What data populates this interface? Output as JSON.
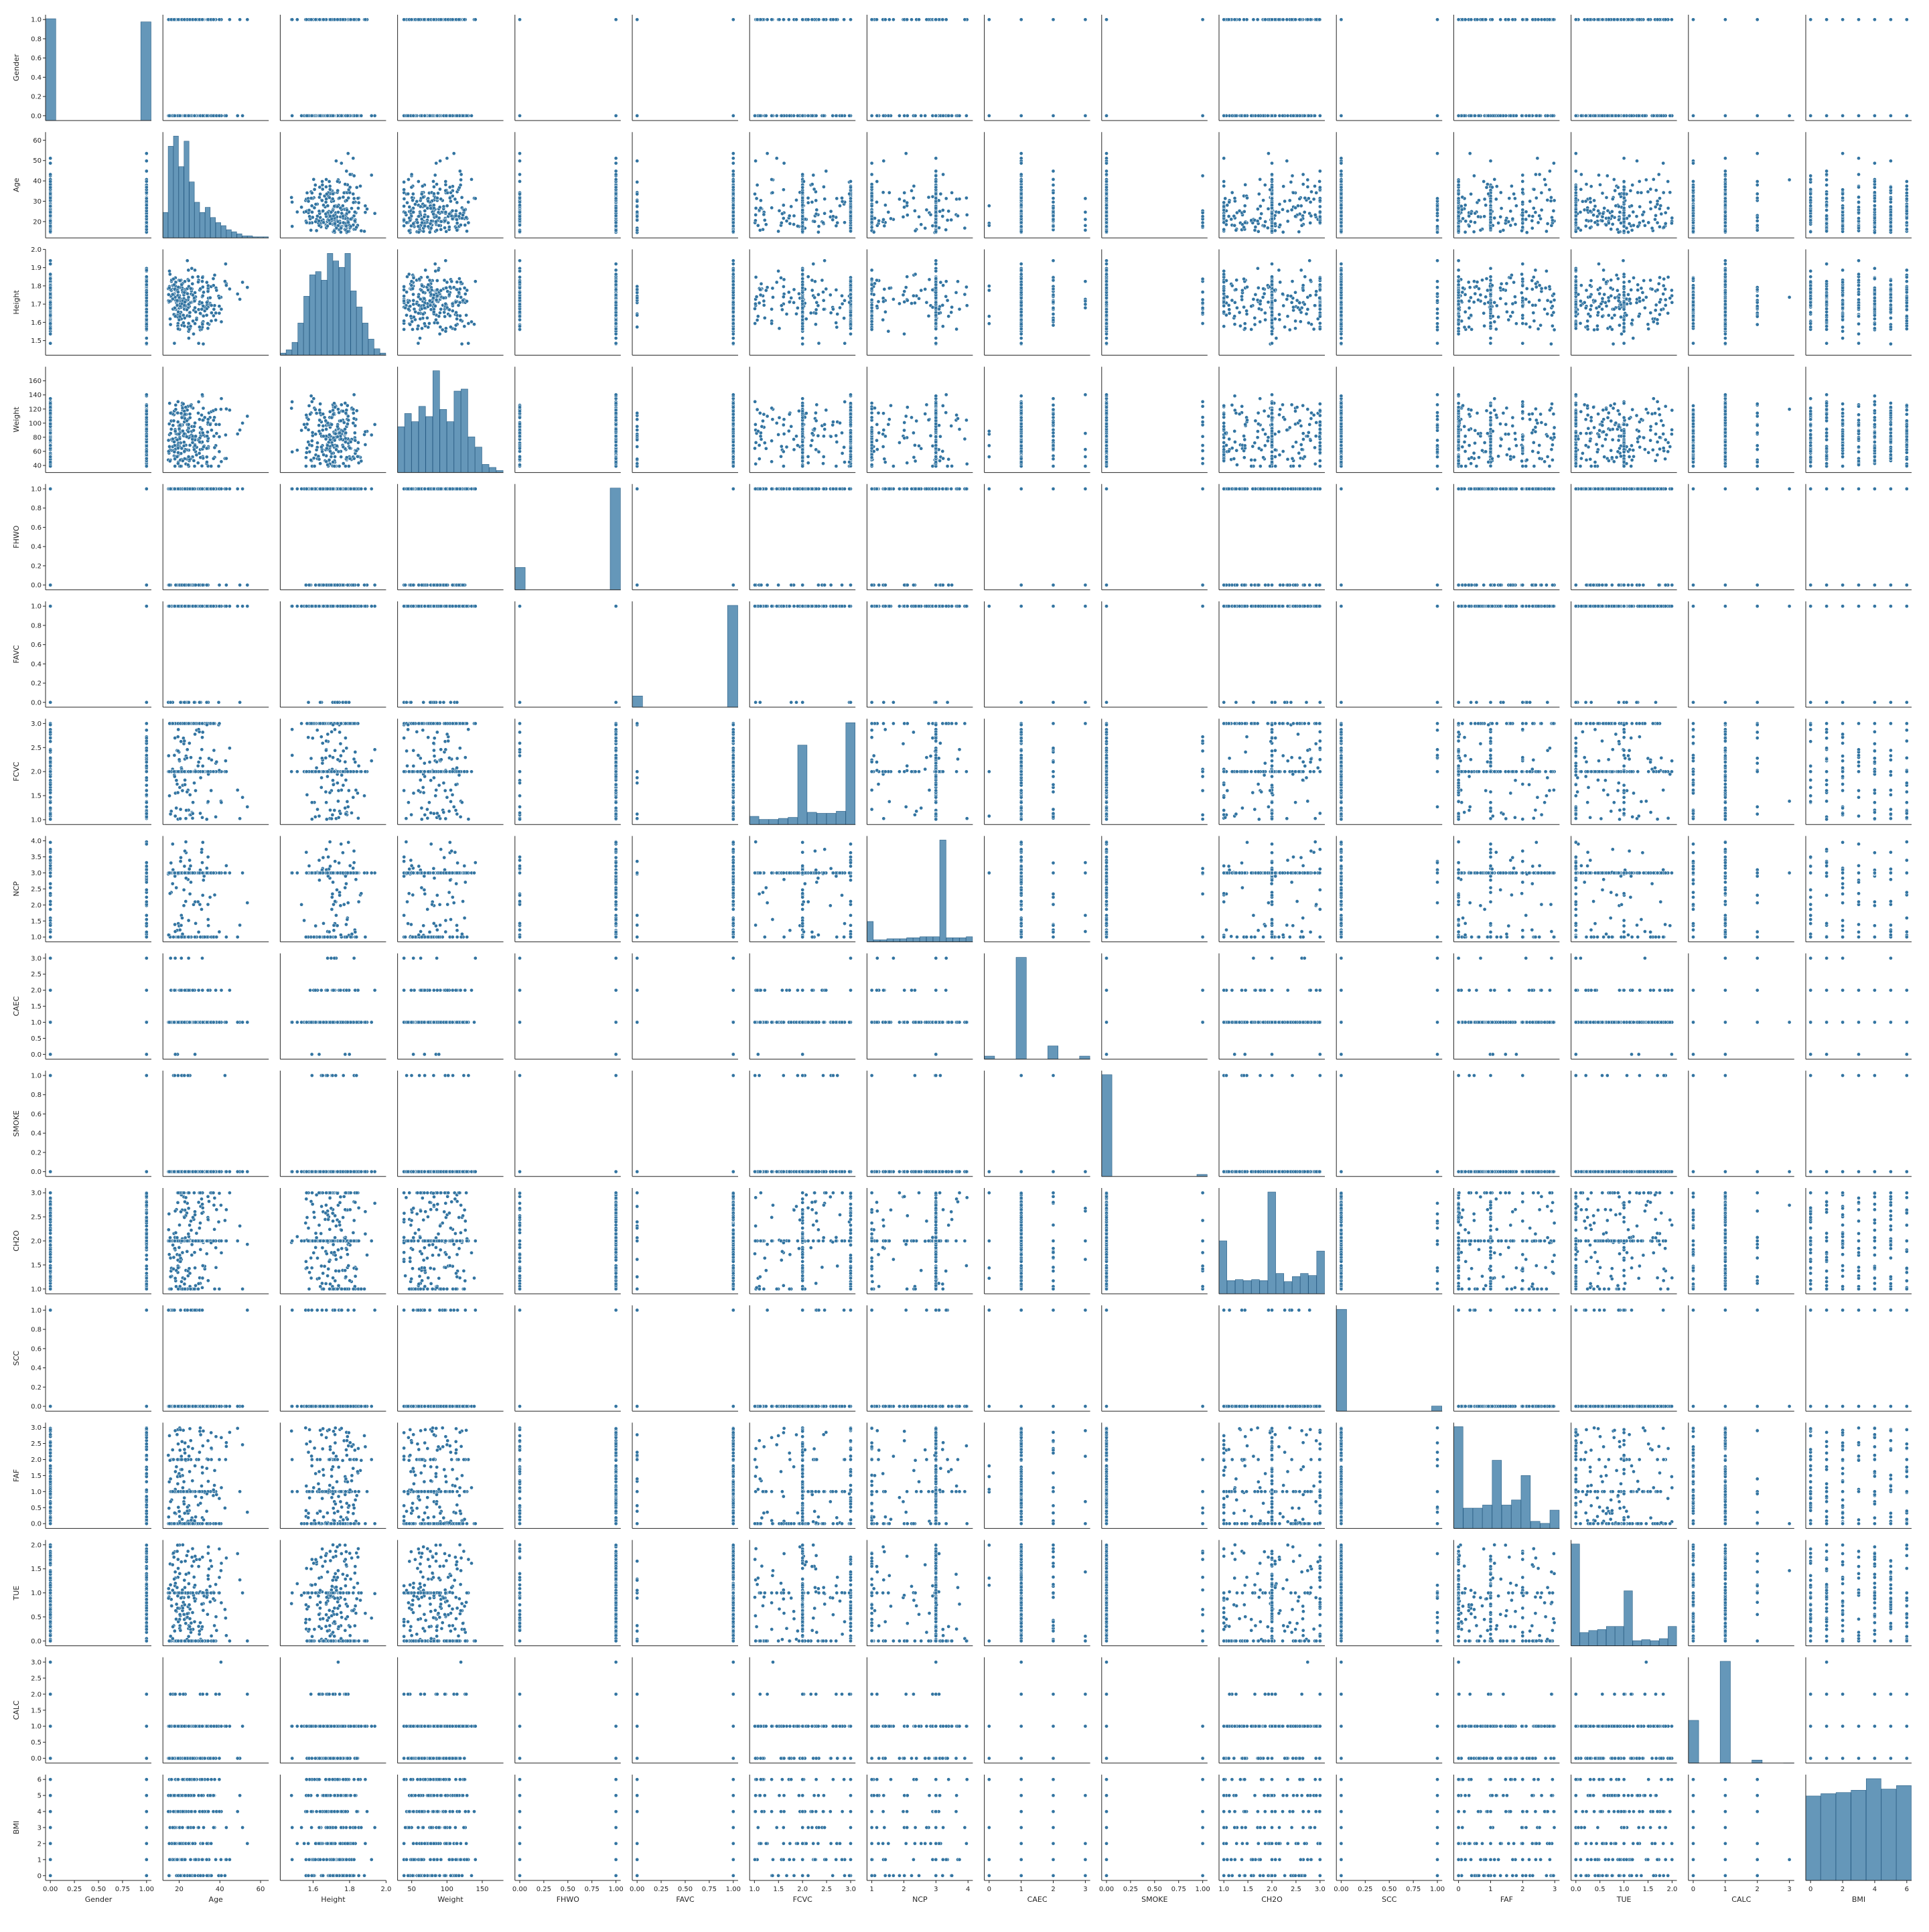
{
  "chart_data": {
    "type": "scatter",
    "subtype": "pairplot",
    "marker_color": "#3274A1",
    "marker_edge_color": "#ffffff",
    "diagonal": "histogram",
    "variables": [
      {
        "name": "Gender",
        "lim": [
          -0.05,
          1.05
        ],
        "ticks": [
          0.0,
          0.25,
          0.5,
          0.75,
          1.0
        ],
        "tick_labels": [
          "0.00",
          "0.25",
          "0.50",
          "0.75",
          "1.00"
        ],
        "ytick_labels": [
          "0.0",
          "0.2",
          "0.4",
          "0.6",
          "0.8",
          "1.0"
        ],
        "yticks": [
          0.0,
          0.2,
          0.4,
          0.6,
          0.8,
          1.0
        ],
        "kind": "binary",
        "hist": [
          0.98,
          0,
          0,
          0,
          0,
          0,
          0,
          0,
          0,
          0.95
        ]
      },
      {
        "name": "Age",
        "lim": [
          12,
          64
        ],
        "ticks": [
          20,
          40,
          60
        ],
        "tick_labels": [
          "20",
          "40",
          "60"
        ],
        "yticks": [
          20,
          30,
          40,
          50,
          60
        ],
        "ytick_labels": [
          "20",
          "30",
          "40",
          "50",
          "60"
        ],
        "kind": "skewed",
        "hist": [
          0.25,
          0.9,
          1.0,
          0.7,
          0.95,
          0.55,
          0.35,
          0.25,
          0.3,
          0.2,
          0.15,
          0.12,
          0.08,
          0.06,
          0.04,
          0.02,
          0.02,
          0.01,
          0.01,
          0.01
        ]
      },
      {
        "name": "Height",
        "lim": [
          1.42,
          2.0
        ],
        "ticks": [
          1.6,
          1.8,
          2.0
        ],
        "tick_labels": [
          "1.6",
          "1.8",
          "2.0"
        ],
        "yticks": [
          1.5,
          1.6,
          1.7,
          1.8,
          1.9,
          2.0
        ],
        "ytick_labels": [
          "1.5",
          "1.6",
          "1.7",
          "1.8",
          "1.9",
          "2.0"
        ],
        "kind": "normal",
        "hist": [
          0.02,
          0.05,
          0.12,
          0.3,
          0.55,
          0.75,
          0.78,
          0.7,
          0.95,
          0.88,
          0.82,
          0.95,
          0.6,
          0.45,
          0.3,
          0.15,
          0.06,
          0.02
        ]
      },
      {
        "name": "Weight",
        "lim": [
          30,
          180
        ],
        "ticks": [
          50,
          100,
          150
        ],
        "tick_labels": [
          "50",
          "100",
          "150"
        ],
        "yticks": [
          40,
          60,
          80,
          100,
          120,
          140,
          160
        ],
        "ytick_labels": [
          "40",
          "60",
          "80",
          "100",
          "120",
          "140",
          "160"
        ],
        "kind": "multimodal",
        "hist": [
          0.45,
          0.58,
          0.5,
          0.65,
          0.55,
          1.0,
          0.62,
          0.5,
          0.8,
          0.82,
          0.35,
          0.25,
          0.08,
          0.05,
          0.02
        ]
      },
      {
        "name": "FHWO",
        "lim": [
          -0.05,
          1.05
        ],
        "ticks": [
          0.0,
          0.25,
          0.5,
          0.75,
          1.0
        ],
        "tick_labels": [
          "0.00",
          "0.25",
          "0.50",
          "0.75",
          "1.00"
        ],
        "yticks": [
          0.0,
          0.2,
          0.4,
          0.6,
          0.8,
          1.0
        ],
        "ytick_labels": [
          "0.0",
          "0.2",
          "0.4",
          "0.6",
          "0.8",
          "1.0"
        ],
        "kind": "binary",
        "hist": [
          0.22,
          0,
          0,
          0,
          0,
          0,
          0,
          0,
          0,
          1.0
        ]
      },
      {
        "name": "FAVC",
        "lim": [
          -0.05,
          1.05
        ],
        "ticks": [
          0.0,
          0.25,
          0.5,
          0.75,
          1.0
        ],
        "tick_labels": [
          "0.00",
          "0.25",
          "0.50",
          "0.75",
          "1.00"
        ],
        "yticks": [
          0.0,
          0.2,
          0.4,
          0.6,
          0.8,
          1.0
        ],
        "ytick_labels": [
          "0.0",
          "0.2",
          "0.4",
          "0.6",
          "0.8",
          "1.0"
        ],
        "kind": "binary",
        "hist": [
          0.11,
          0,
          0,
          0,
          0,
          0,
          0,
          0,
          0,
          1.0
        ]
      },
      {
        "name": "FCVC",
        "lim": [
          0.9,
          3.1
        ],
        "ticks": [
          1.0,
          1.5,
          2.0,
          2.5,
          3.0
        ],
        "tick_labels": [
          "1.0",
          "1.5",
          "2.0",
          "2.5",
          "3.0"
        ],
        "yticks": [
          1.0,
          1.5,
          2.0,
          2.5,
          3.0
        ],
        "ytick_labels": [
          "1.0",
          "1.5",
          "2.0",
          "2.5",
          "3.0"
        ],
        "kind": "semi-discrete",
        "hist": [
          0.08,
          0.05,
          0.05,
          0.06,
          0.07,
          0.78,
          0.12,
          0.11,
          0.11,
          0.13,
          1.0
        ]
      },
      {
        "name": "NCP",
        "lim": [
          0.85,
          4.15
        ],
        "ticks": [
          1,
          2,
          3,
          4
        ],
        "tick_labels": [
          "1",
          "2",
          "3",
          "4"
        ],
        "yticks": [
          1.0,
          1.5,
          2.0,
          2.5,
          3.0,
          3.5,
          4.0
        ],
        "ytick_labels": [
          "1.0",
          "1.5",
          "2.0",
          "2.5",
          "3.0",
          "3.5",
          "4.0"
        ],
        "kind": "semi-discrete",
        "hist": [
          0.2,
          0.02,
          0.02,
          0.03,
          0.03,
          0.03,
          0.04,
          0.04,
          0.05,
          0.05,
          0.05,
          1.0,
          0.04,
          0.04,
          0.04,
          0.05
        ]
      },
      {
        "name": "CAEC",
        "lim": [
          -0.15,
          3.15
        ],
        "ticks": [
          0,
          1,
          2,
          3
        ],
        "tick_labels": [
          "0",
          "1",
          "2",
          "3"
        ],
        "yticks": [
          0.0,
          0.5,
          1.0,
          1.5,
          2.0,
          2.5,
          3.0
        ],
        "ytick_labels": [
          "0.0",
          "0.5",
          "1.0",
          "1.5",
          "2.0",
          "2.5",
          "3.0"
        ],
        "kind": "categorical",
        "hist": [
          0.03,
          0,
          0,
          1.0,
          0,
          0,
          0.13,
          0,
          0,
          0.03
        ]
      },
      {
        "name": "SMOKE",
        "lim": [
          -0.05,
          1.05
        ],
        "ticks": [
          0.0,
          0.25,
          0.5,
          0.75,
          1.0
        ],
        "tick_labels": [
          "0.00",
          "0.25",
          "0.50",
          "0.75",
          "1.00"
        ],
        "yticks": [
          0.0,
          0.2,
          0.4,
          0.6,
          0.8,
          1.0
        ],
        "ytick_labels": [
          "0.0",
          "0.2",
          "0.4",
          "0.6",
          "0.8",
          "1.0"
        ],
        "kind": "binary",
        "hist": [
          1.0,
          0,
          0,
          0,
          0,
          0,
          0,
          0,
          0,
          0.02
        ]
      },
      {
        "name": "CH2O",
        "lim": [
          0.9,
          3.1
        ],
        "ticks": [
          1.0,
          1.5,
          2.0,
          2.5,
          3.0
        ],
        "tick_labels": [
          "1.0",
          "1.5",
          "2.0",
          "2.5",
          "3.0"
        ],
        "yticks": [
          1.0,
          1.5,
          2.0,
          2.5,
          3.0
        ],
        "ytick_labels": [
          "1.0",
          "1.5",
          "2.0",
          "2.5",
          "3.0"
        ],
        "kind": "semi-discrete",
        "hist": [
          0.52,
          0.13,
          0.14,
          0.13,
          0.14,
          0.13,
          1.0,
          0.2,
          0.12,
          0.17,
          0.2,
          0.18,
          0.42
        ]
      },
      {
        "name": "SCC",
        "lim": [
          -0.05,
          1.05
        ],
        "ticks": [
          0.0,
          0.25,
          0.5,
          0.75,
          1.0
        ],
        "tick_labels": [
          "0.00",
          "0.25",
          "0.50",
          "0.75",
          "1.00"
        ],
        "yticks": [
          0.0,
          0.2,
          0.4,
          0.6,
          0.8,
          1.0
        ],
        "ytick_labels": [
          "0.0",
          "0.2",
          "0.4",
          "0.6",
          "0.8",
          "1.0"
        ],
        "kind": "binary",
        "hist": [
          1.0,
          0,
          0,
          0,
          0,
          0,
          0,
          0,
          0,
          0.05
        ]
      },
      {
        "name": "FAF",
        "lim": [
          -0.15,
          3.15
        ],
        "ticks": [
          0,
          1,
          2,
          3
        ],
        "tick_labels": [
          "0",
          "1",
          "2",
          "3"
        ],
        "yticks": [
          0.0,
          0.5,
          1.0,
          1.5,
          2.0,
          2.5,
          3.0
        ],
        "ytick_labels": [
          "0.0",
          "0.5",
          "1.0",
          "1.5",
          "2.0",
          "2.5",
          "3.0"
        ],
        "kind": "semi-discrete",
        "hist": [
          1.0,
          0.2,
          0.2,
          0.23,
          0.67,
          0.23,
          0.28,
          0.52,
          0.07,
          0.05,
          0.18
        ]
      },
      {
        "name": "TUE",
        "lim": [
          -0.1,
          2.1
        ],
        "ticks": [
          0.0,
          0.5,
          1.0,
          1.5,
          2.0
        ],
        "tick_labels": [
          "0.0",
          "0.5",
          "1.0",
          "1.5",
          "2.0"
        ],
        "yticks": [
          0.0,
          0.5,
          1.0,
          1.5,
          2.0
        ],
        "ytick_labels": [
          "0.0",
          "0.5",
          "1.0",
          "1.5",
          "2.0"
        ],
        "kind": "semi-discrete",
        "hist": [
          1.0,
          0.13,
          0.15,
          0.16,
          0.19,
          0.19,
          0.54,
          0.05,
          0.06,
          0.05,
          0.07,
          0.19
        ]
      },
      {
        "name": "CALC",
        "lim": [
          -0.15,
          3.15
        ],
        "ticks": [
          0,
          1,
          2,
          3
        ],
        "tick_labels": [
          "0",
          "1",
          "2",
          "3"
        ],
        "yticks": [
          0.0,
          0.5,
          1.0,
          1.5,
          2.0,
          2.5,
          3.0
        ],
        "ytick_labels": [
          "0.0",
          "0.5",
          "1.0",
          "1.5",
          "2.0",
          "2.5",
          "3.0"
        ],
        "kind": "categorical",
        "hist": [
          0.42,
          0,
          0,
          1.0,
          0,
          0,
          0.03,
          0,
          0,
          0.001
        ]
      },
      {
        "name": "BMI",
        "lim": [
          -0.3,
          6.3
        ],
        "ticks": [
          0,
          2,
          4,
          6
        ],
        "tick_labels": [
          "0",
          "2",
          "4",
          "6"
        ],
        "yticks": [
          0,
          1,
          2,
          3,
          4,
          5,
          6
        ],
        "ytick_labels": [
          "0",
          "1",
          "2",
          "3",
          "4",
          "5",
          "6"
        ],
        "kind": "categorical",
        "hist": [
          0.73,
          0.75,
          0.76,
          0.78,
          0.88,
          0.79,
          0.82
        ]
      }
    ],
    "grid": false,
    "legend": "none"
  }
}
